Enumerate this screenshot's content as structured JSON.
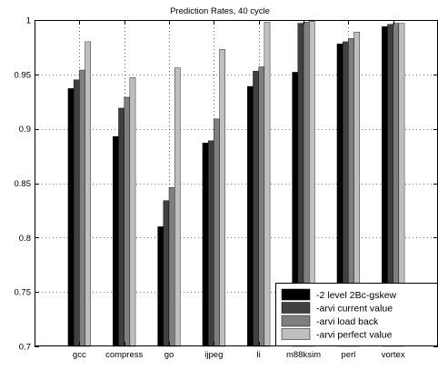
{
  "chart_data": {
    "type": "bar",
    "title": "Prediction Rates, 40 cycle",
    "xlabel": "",
    "ylabel": "",
    "categories": [
      "gcc",
      "compress",
      "go",
      "ijpeg",
      "li",
      "m88ksim",
      "perl",
      "vortex"
    ],
    "ylim": [
      0.7,
      1.0
    ],
    "yticks": [
      0.7,
      0.75,
      0.8,
      0.85,
      0.9,
      0.95,
      1
    ],
    "ytick_labels": [
      "0.7",
      "0.75",
      "0.8",
      "0.85",
      "0.9",
      "0.95",
      "1"
    ],
    "grid": true,
    "legend_position": "bottom-right",
    "series": [
      {
        "name": "-2 level 2Bc-gskew",
        "color": "#000000",
        "values": [
          0.937,
          0.893,
          0.81,
          0.887,
          0.939,
          0.952,
          0.978,
          0.994
        ]
      },
      {
        "name": "-arvi current value",
        "color": "#404040",
        "values": [
          0.945,
          0.919,
          0.834,
          0.889,
          0.953,
          0.997,
          0.98,
          0.996
        ]
      },
      {
        "name": "-arvi load back",
        "color": "#7f7f7f",
        "values": [
          0.954,
          0.929,
          0.846,
          0.909,
          0.957,
          0.998,
          0.983,
          0.997
        ]
      },
      {
        "name": "-arvi perfect value",
        "color": "#bfbfbf",
        "values": [
          0.98,
          0.947,
          0.956,
          0.973,
          0.998,
          0.999,
          0.989,
          0.997
        ]
      }
    ]
  }
}
